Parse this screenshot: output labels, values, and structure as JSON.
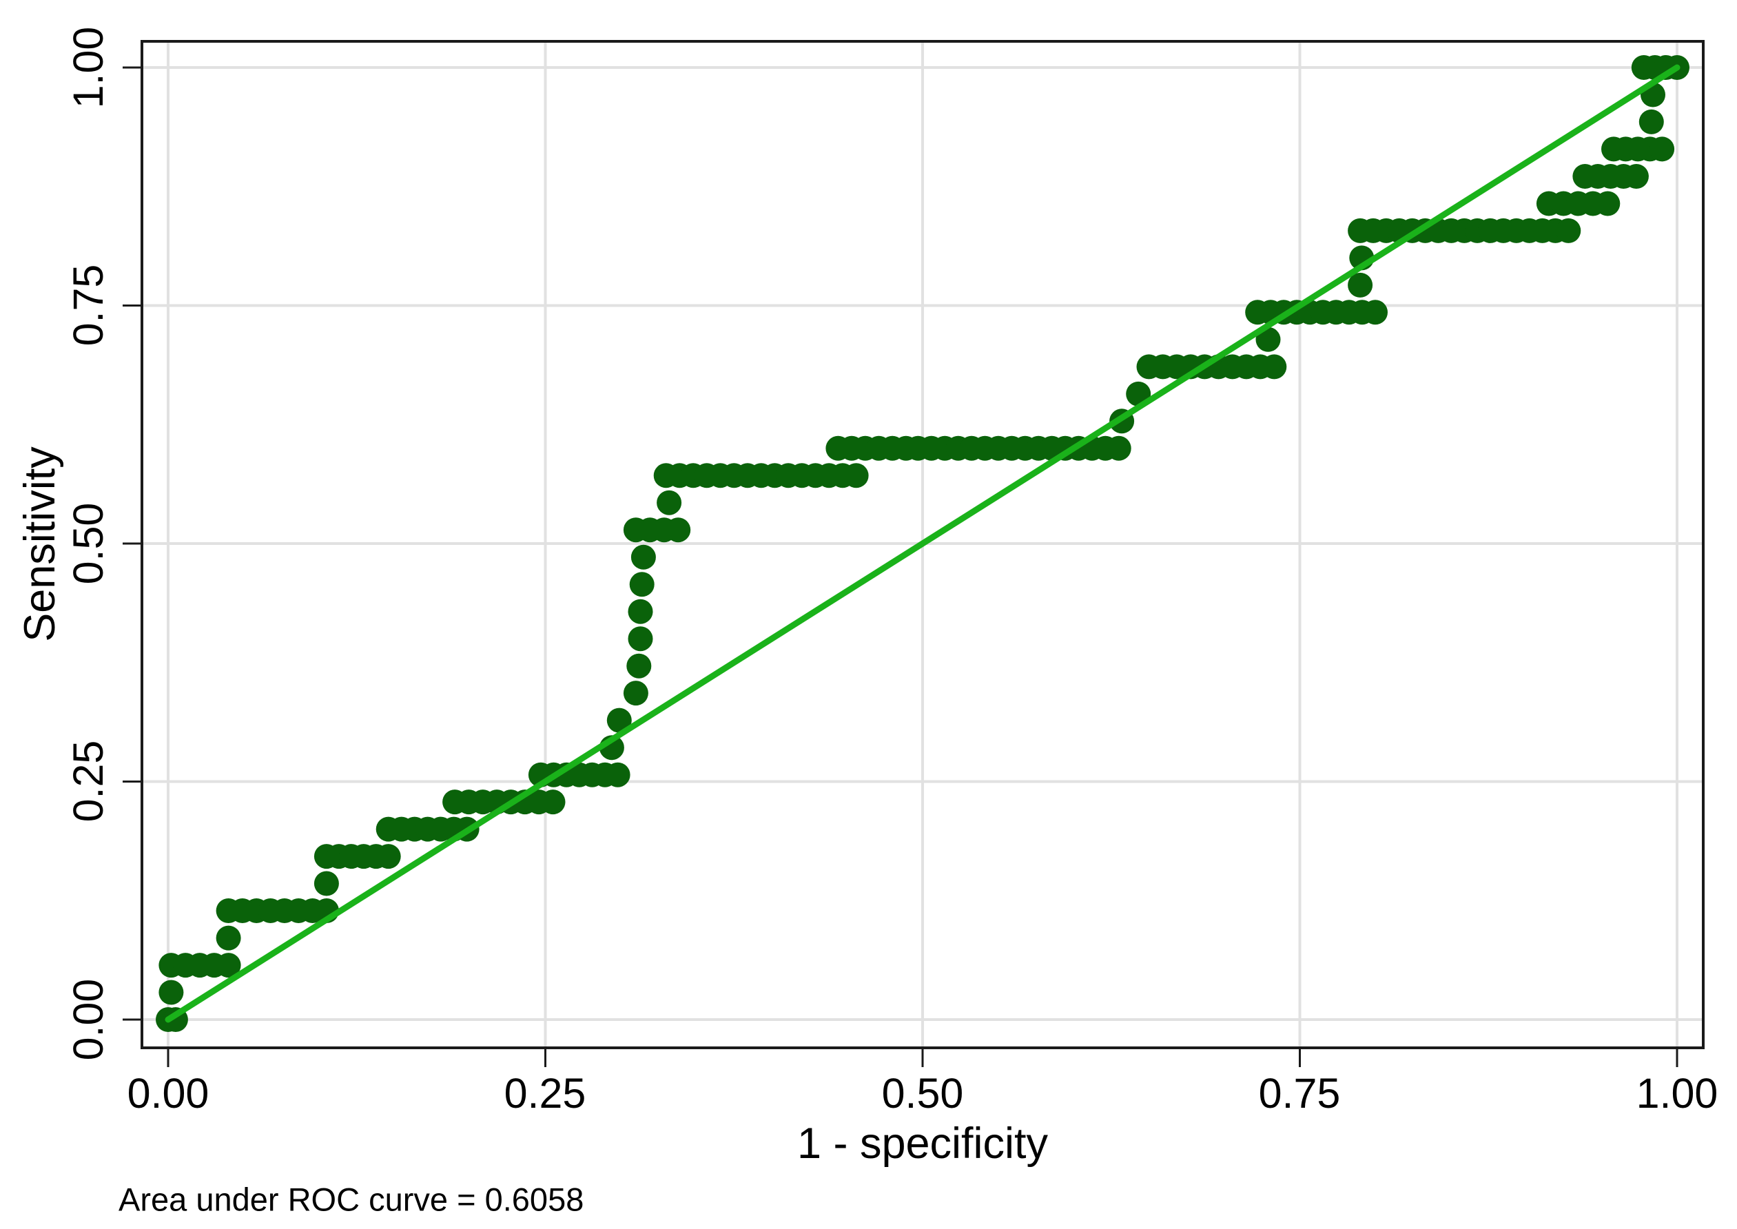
{
  "chart_data": {
    "type": "scatter",
    "title": "",
    "xlabel": "1 - specificity",
    "ylabel": "Sensitivity",
    "caption": "Area under ROC curve = 0.6058",
    "auc": 0.6058,
    "xlim": [
      0,
      1
    ],
    "ylim": [
      0,
      1
    ],
    "grid": true,
    "x_ticks": [
      0,
      0.25,
      0.5,
      0.75,
      1
    ],
    "y_ticks": [
      0,
      0.25,
      0.5,
      0.75,
      1
    ],
    "x_tick_labels": [
      "0.00",
      "0.25",
      "0.50",
      "0.75",
      "1.00"
    ],
    "y_tick_labels": [
      "0.00",
      "0.25",
      "0.50",
      "0.75",
      "1.00"
    ],
    "reference_line": {
      "from": [
        0,
        0
      ],
      "to": [
        1,
        1
      ]
    },
    "colors": {
      "dots": "#0a620a",
      "ref_line": "#1ab21a",
      "grid": "#e1e1e1",
      "axis": "#1a1a1a",
      "text": "#000000",
      "background": "#ffffff"
    },
    "roc_steps": [
      {
        "y": 0.0,
        "x0": 0.0,
        "x1": 0.005
      },
      {
        "y": 0.0286,
        "x0": 0.002,
        "x1": 0.002
      },
      {
        "y": 0.0571,
        "x0": 0.002,
        "x1": 0.04
      },
      {
        "y": 0.0857,
        "x0": 0.04,
        "x1": 0.04
      },
      {
        "y": 0.1143,
        "x0": 0.04,
        "x1": 0.105
      },
      {
        "y": 0.1429,
        "x0": 0.105,
        "x1": 0.105
      },
      {
        "y": 0.1714,
        "x0": 0.105,
        "x1": 0.146
      },
      {
        "y": 0.2,
        "x0": 0.146,
        "x1": 0.198
      },
      {
        "y": 0.2286,
        "x0": 0.19,
        "x1": 0.255
      },
      {
        "y": 0.2571,
        "x0": 0.247,
        "x1": 0.298
      },
      {
        "y": 0.2857,
        "x0": 0.294,
        "x1": 0.294
      },
      {
        "y": 0.3143,
        "x0": 0.299,
        "x1": 0.299
      },
      {
        "y": 0.3429,
        "x0": 0.31,
        "x1": 0.31
      },
      {
        "y": 0.3714,
        "x0": 0.312,
        "x1": 0.312
      },
      {
        "y": 0.4,
        "x0": 0.313,
        "x1": 0.313
      },
      {
        "y": 0.4286,
        "x0": 0.313,
        "x1": 0.313
      },
      {
        "y": 0.4571,
        "x0": 0.314,
        "x1": 0.314
      },
      {
        "y": 0.4857,
        "x0": 0.315,
        "x1": 0.315
      },
      {
        "y": 0.5143,
        "x0": 0.31,
        "x1": 0.338
      },
      {
        "y": 0.5429,
        "x0": 0.332,
        "x1": 0.332
      },
      {
        "y": 0.5714,
        "x0": 0.33,
        "x1": 0.456
      },
      {
        "y": 0.6,
        "x0": 0.444,
        "x1": 0.489
      },
      {
        "y": 0.6,
        "x0": 0.497,
        "x1": 0.63
      },
      {
        "y": 0.6286,
        "x0": 0.632,
        "x1": 0.632
      },
      {
        "y": 0.6571,
        "x0": 0.643,
        "x1": 0.643
      },
      {
        "y": 0.6857,
        "x0": 0.65,
        "x1": 0.733
      },
      {
        "y": 0.7143,
        "x0": 0.729,
        "x1": 0.729
      },
      {
        "y": 0.7429,
        "x0": 0.722,
        "x1": 0.8
      },
      {
        "y": 0.7714,
        "x0": 0.79,
        "x1": 0.79
      },
      {
        "y": 0.8,
        "x0": 0.791,
        "x1": 0.791
      },
      {
        "y": 0.8286,
        "x0": 0.79,
        "x1": 0.928
      },
      {
        "y": 0.8571,
        "x0": 0.915,
        "x1": 0.954
      },
      {
        "y": 0.8857,
        "x0": 0.939,
        "x1": 0.973
      },
      {
        "y": 0.9143,
        "x0": 0.958,
        "x1": 0.99
      },
      {
        "y": 0.9429,
        "x0": 0.983,
        "x1": 0.983
      },
      {
        "y": 0.9714,
        "x0": 0.984,
        "x1": 0.984
      },
      {
        "y": 1.0,
        "x0": 0.978,
        "x1": 1.0
      }
    ]
  }
}
